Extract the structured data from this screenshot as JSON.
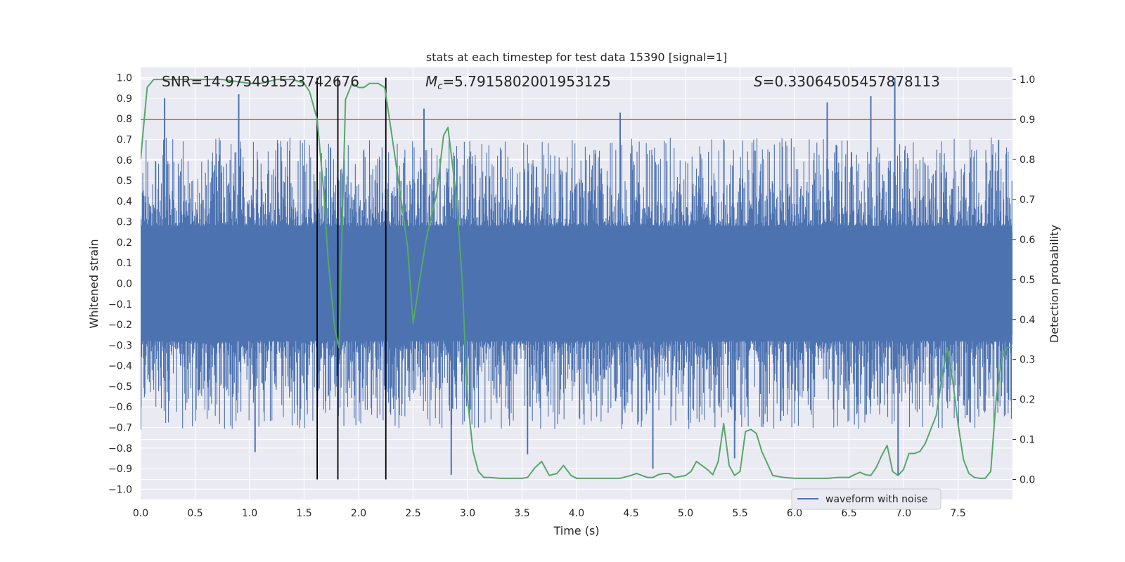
{
  "chart_data": {
    "type": "line",
    "title": "stats at each timestep for test data 15390 [signal=1]",
    "xlabel": "Time (s)",
    "ylabel_left": "Whitened strain",
    "ylabel_right": "Detection probability",
    "xlim": [
      0.0,
      8.0
    ],
    "ylim_left": [
      -1.05,
      1.05
    ],
    "ylim_right": [
      -0.05,
      1.03
    ],
    "xticks": [
      0.0,
      0.5,
      1.0,
      1.5,
      2.0,
      2.5,
      3.0,
      3.5,
      4.0,
      4.5,
      5.0,
      5.5,
      6.0,
      6.5,
      7.0,
      7.5
    ],
    "xtick_labels": [
      "0.0",
      "0.5",
      "1.0",
      "1.5",
      "2.0",
      "2.5",
      "3.0",
      "3.5",
      "4.0",
      "4.5",
      "5.0",
      "5.5",
      "6.0",
      "6.5",
      "7.0",
      "7.5"
    ],
    "yticks_left": [
      -1.0,
      -0.9,
      -0.8,
      -0.7,
      -0.6,
      -0.5,
      -0.4,
      -0.3,
      -0.2,
      -0.1,
      0.0,
      0.1,
      0.2,
      0.3,
      0.4,
      0.5,
      0.6,
      0.7,
      0.8,
      0.9,
      1.0
    ],
    "ytick_labels_left": [
      "−1.0",
      "−0.9",
      "−0.8",
      "−0.7",
      "−0.6",
      "−0.5",
      "−0.4",
      "−0.3",
      "−0.2",
      "−0.1",
      "0.0",
      "0.1",
      "0.2",
      "0.3",
      "0.4",
      "0.5",
      "0.6",
      "0.7",
      "0.8",
      "0.9",
      "1.0"
    ],
    "yticks_right": [
      0.0,
      0.1,
      0.2,
      0.3,
      0.4,
      0.5,
      0.6,
      0.7,
      0.8,
      0.9,
      1.0
    ],
    "ytick_labels_right": [
      "0.0",
      "0.1",
      "0.2",
      "0.3",
      "0.4",
      "0.5",
      "0.6",
      "0.7",
      "0.8",
      "0.9",
      "1.0"
    ],
    "annotations": {
      "snr": "SNR=14.975491523742676",
      "mc_symbol": "M",
      "mc_subscript": "c",
      "mc_value": "=5.7915802001953125",
      "s_symbol": "S",
      "s_value": "=0.33064505457878113"
    },
    "threshold": 0.9,
    "vlines": [
      1.62,
      1.81,
      2.25
    ],
    "grid": true,
    "legend": {
      "position": "lower-right",
      "label": "waveform with noise"
    },
    "waveform": {
      "name": "waveform with noise",
      "color": "#4c72b0",
      "core_amplitude": 0.25,
      "typical_peak": 0.6,
      "spikes": [
        [
          0.22,
          0.9
        ],
        [
          0.9,
          0.92
        ],
        [
          2.6,
          0.85
        ],
        [
          4.4,
          0.83
        ],
        [
          6.3,
          0.88
        ],
        [
          6.7,
          0.91
        ],
        [
          6.92,
          1.0
        ],
        [
          1.05,
          -0.82
        ],
        [
          2.85,
          -0.93
        ],
        [
          3.55,
          -0.83
        ],
        [
          4.7,
          -0.9
        ],
        [
          5.45,
          -0.85
        ],
        [
          6.95,
          -0.93
        ],
        [
          0.0,
          -0.71
        ]
      ]
    },
    "probability": {
      "color": "#55a868",
      "x": [
        0.0,
        0.06,
        0.12,
        0.25,
        0.5,
        0.75,
        1.0,
        1.1,
        1.25,
        1.4,
        1.5,
        1.55,
        1.62,
        1.68,
        1.72,
        1.78,
        1.82,
        1.88,
        1.94,
        2.0,
        2.05,
        2.1,
        2.18,
        2.24,
        2.3,
        2.38,
        2.45,
        2.5,
        2.55,
        2.62,
        2.72,
        2.78,
        2.82,
        2.9,
        2.95,
        3.0,
        3.05,
        3.1,
        3.15,
        3.2,
        3.3,
        3.4,
        3.5,
        3.55,
        3.62,
        3.68,
        3.75,
        3.82,
        3.88,
        3.95,
        4.0,
        4.1,
        4.2,
        4.3,
        4.4,
        4.5,
        4.55,
        4.6,
        4.65,
        4.7,
        4.75,
        4.8,
        4.85,
        4.9,
        5.0,
        5.05,
        5.1,
        5.15,
        5.2,
        5.25,
        5.3,
        5.35,
        5.4,
        5.45,
        5.5,
        5.55,
        5.6,
        5.65,
        5.7,
        5.8,
        5.9,
        6.0,
        6.1,
        6.2,
        6.3,
        6.4,
        6.5,
        6.55,
        6.6,
        6.65,
        6.7,
        6.75,
        6.8,
        6.85,
        6.9,
        6.95,
        7.0,
        7.05,
        7.1,
        7.15,
        7.2,
        7.3,
        7.35,
        7.4,
        7.45,
        7.5,
        7.55,
        7.6,
        7.65,
        7.7,
        7.75,
        7.8,
        7.85,
        7.9,
        7.95,
        8.0
      ],
      "y": [
        0.8,
        0.98,
        1.0,
        1.0,
        1.0,
        1.0,
        0.99,
        0.99,
        1.0,
        1.0,
        0.99,
        0.97,
        0.9,
        0.72,
        0.55,
        0.38,
        0.33,
        0.95,
        0.99,
        0.98,
        0.98,
        0.99,
        0.99,
        0.98,
        0.87,
        0.72,
        0.58,
        0.39,
        0.48,
        0.6,
        0.72,
        0.86,
        0.88,
        0.7,
        0.5,
        0.2,
        0.07,
        0.02,
        0.005,
        0.005,
        0.003,
        0.003,
        0.003,
        0.005,
        0.03,
        0.045,
        0.01,
        0.015,
        0.035,
        0.01,
        0.003,
        0.003,
        0.003,
        0.003,
        0.003,
        0.01,
        0.015,
        0.01,
        0.005,
        0.005,
        0.012,
        0.015,
        0.015,
        0.005,
        0.01,
        0.02,
        0.045,
        0.035,
        0.025,
        0.012,
        0.045,
        0.14,
        0.035,
        0.01,
        0.02,
        0.12,
        0.125,
        0.115,
        0.07,
        0.01,
        0.005,
        0.003,
        0.003,
        0.003,
        0.003,
        0.005,
        0.005,
        0.012,
        0.018,
        0.012,
        0.01,
        0.03,
        0.06,
        0.085,
        0.02,
        0.01,
        0.025,
        0.065,
        0.065,
        0.07,
        0.09,
        0.16,
        0.25,
        0.33,
        0.25,
        0.14,
        0.05,
        0.015,
        0.005,
        0.003,
        0.003,
        0.02,
        0.2,
        0.3,
        0.33,
        0.33
      ]
    },
    "colors": {
      "axes_bg": "#eaeaf2",
      "grid": "#ffffff",
      "threshold": "#c44e52",
      "vline": "#000000"
    }
  }
}
